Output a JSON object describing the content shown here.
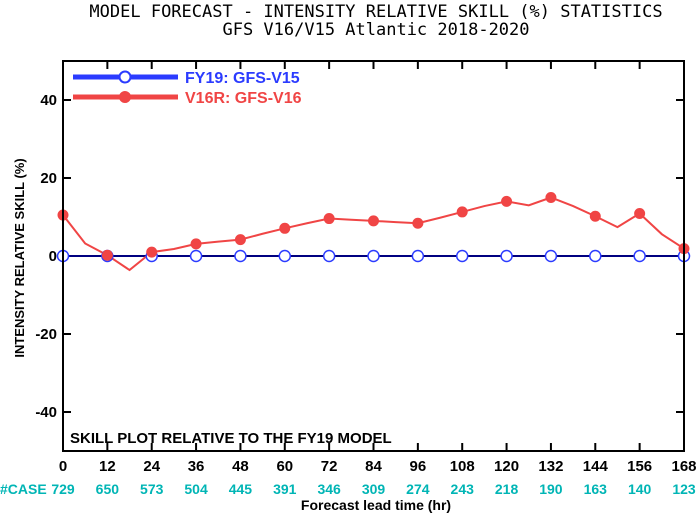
{
  "chart_data": {
    "type": "line",
    "title": "MODEL FORECAST - INTENSITY RELATIVE SKILL (%) STATISTICS",
    "subtitle": "GFS V16/V15 Atlantic 2018-2020",
    "xlabel": "Forecast lead time (hr)",
    "ylabel": "INTENSITY RELATIVE SKILL (%)",
    "xlim": [
      0,
      168
    ],
    "ylim": [
      -50,
      50
    ],
    "x_ticks": [
      "0",
      "12",
      "24",
      "36",
      "48",
      "60",
      "72",
      "84",
      "96",
      "108",
      "120",
      "132",
      "144",
      "156",
      "168"
    ],
    "y_ticks": [
      "40",
      "20",
      "0",
      "-20",
      "-40"
    ],
    "x": [
      0,
      6,
      12,
      18,
      24,
      30,
      36,
      42,
      48,
      54,
      60,
      66,
      72,
      78,
      84,
      90,
      96,
      102,
      108,
      114,
      120,
      126,
      132,
      138,
      144,
      150,
      156,
      162,
      168
    ],
    "series": [
      {
        "name": "FY19: GFS-V15",
        "color": "#2b3bff",
        "values": [
          0,
          0,
          0,
          0,
          0,
          0,
          0,
          0,
          0,
          0,
          0,
          0,
          0,
          0,
          0,
          0,
          0,
          0,
          0,
          0,
          0,
          0,
          0,
          0,
          0,
          0,
          0,
          0,
          0
        ]
      },
      {
        "name": "V16R: GFS-V16",
        "color": "#f04545",
        "values": [
          10.5,
          3.2,
          0.2,
          -3.6,
          1.0,
          1.8,
          3.1,
          3.7,
          4.2,
          5.7,
          7.1,
          8.4,
          9.6,
          9.3,
          9.0,
          8.7,
          8.4,
          9.8,
          11.3,
          12.8,
          14.0,
          13.0,
          15.0,
          12.8,
          10.2,
          7.4,
          10.9,
          5.6,
          1.9
        ]
      }
    ],
    "legend_position": "top-left",
    "annotation": "SKILL PLOT RELATIVE TO THE FY19 MODEL",
    "case_label": "#CASE",
    "case_counts": [
      "729",
      "650",
      "573",
      "504",
      "445",
      "391",
      "346",
      "309",
      "274",
      "243",
      "218",
      "190",
      "163",
      "140",
      "123"
    ],
    "colors": {
      "axis": "#000000",
      "zero_line": "#000080",
      "case_text": "#00b5b5"
    }
  }
}
